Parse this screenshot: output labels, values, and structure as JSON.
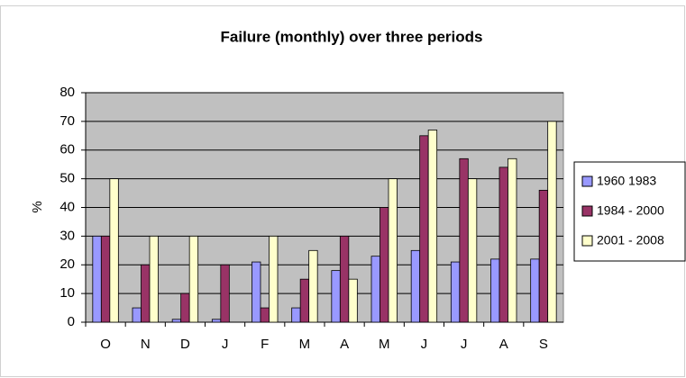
{
  "chart_data": {
    "type": "bar",
    "title": "Failure (monthly) over three periods",
    "y_label": "%",
    "categories": [
      "O",
      "N",
      "D",
      "J",
      "F",
      "M",
      "A",
      "M",
      "J",
      "J",
      "A",
      "S"
    ],
    "series": [
      {
        "name": "1960 1983",
        "color": "#9999ff",
        "values": [
          30,
          5,
          1,
          1,
          21,
          5,
          18,
          23,
          25,
          21,
          22,
          22
        ]
      },
      {
        "name": "1984 - 2000",
        "color": "#993366",
        "values": [
          30,
          20,
          10,
          20,
          5,
          15,
          30,
          40,
          65,
          57,
          54,
          46
        ]
      },
      {
        "name": "2001 - 2008",
        "color": "#ffffcc",
        "values": [
          50,
          30,
          30,
          0,
          30,
          25,
          15,
          50,
          67,
          50,
          57,
          70
        ]
      }
    ],
    "ylim": [
      0,
      80
    ],
    "yticks": [
      0,
      10,
      20,
      30,
      40,
      50,
      60,
      70,
      80
    ],
    "grid": true,
    "legend": "right"
  }
}
